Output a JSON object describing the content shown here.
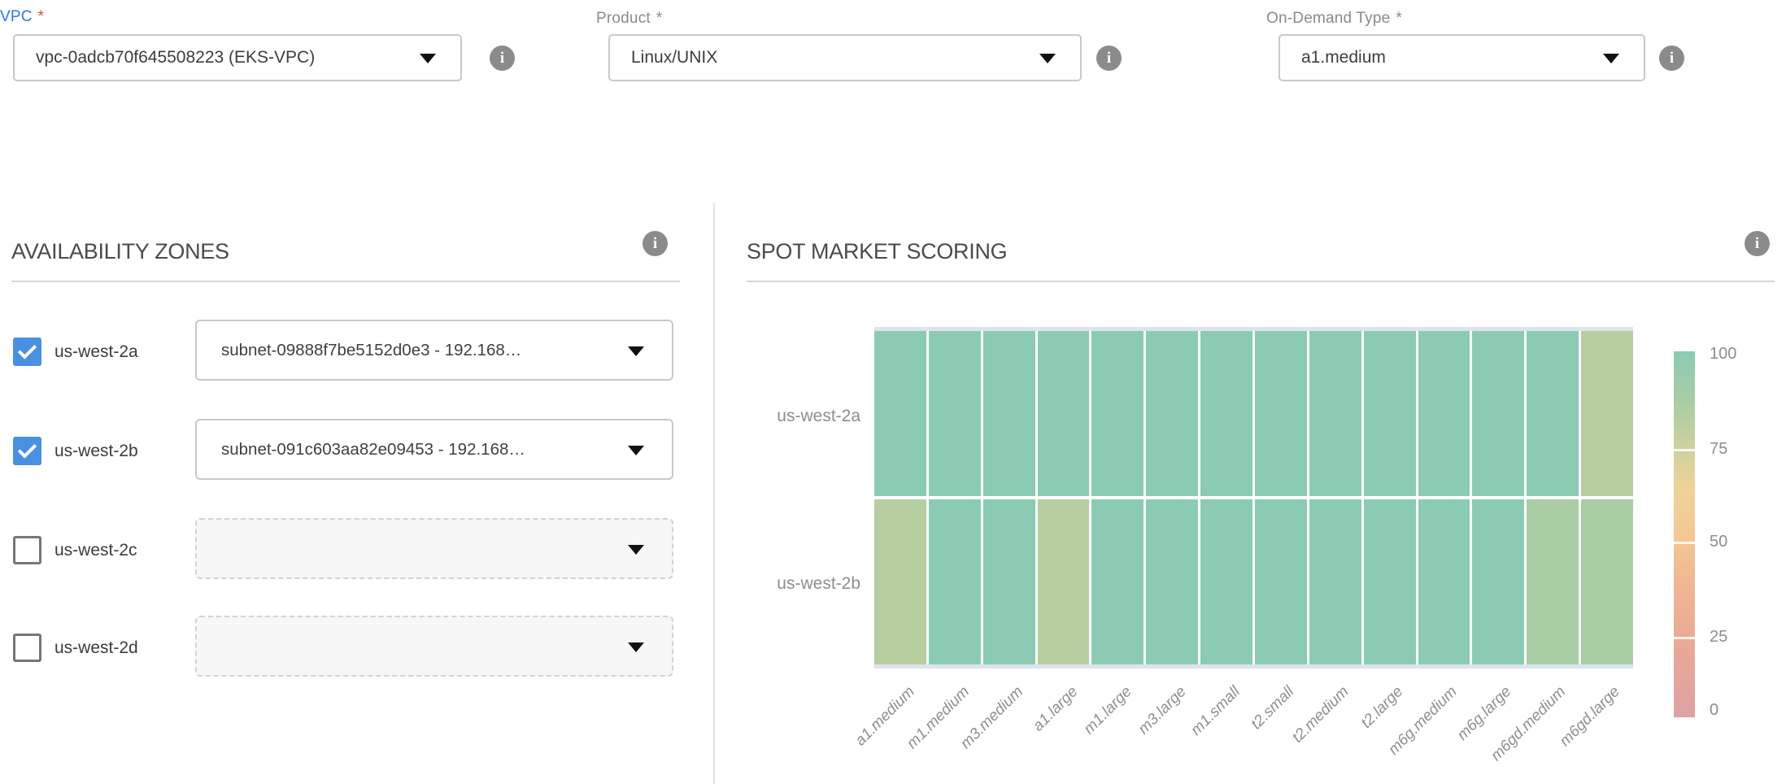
{
  "form": {
    "vpc": {
      "label": "VPC",
      "required_mark": "*",
      "value": "vpc-0adcb70f645508223 (EKS-VPC)"
    },
    "product": {
      "label": "Product",
      "required_mark": "*",
      "value": "Linux/UNIX"
    },
    "on_demand_type": {
      "label": "On-Demand Type",
      "required_mark": "*",
      "value": "a1.medium"
    }
  },
  "availability_zones": {
    "title": "AVAILABILITY ZONES",
    "zones": [
      {
        "label": "us-west-2a",
        "checked": true,
        "subnet": "subnet-09888f7be5152d0e3 - 192.168…"
      },
      {
        "label": "us-west-2b",
        "checked": true,
        "subnet": "subnet-091c603aa82e09453 - 192.168…"
      },
      {
        "label": "us-west-2c",
        "checked": false,
        "subnet": ""
      },
      {
        "label": "us-west-2d",
        "checked": false,
        "subnet": ""
      }
    ]
  },
  "spot_market_scoring": {
    "title": "SPOT MARKET SCORING"
  },
  "chart_data": {
    "type": "heatmap",
    "title": "SPOT MARKET SCORING",
    "x_categories": [
      "a1.medium",
      "m1.medium",
      "m3.medium",
      "a1.large",
      "m1.large",
      "m3.large",
      "m1.small",
      "t2.small",
      "t2.medium",
      "t2.large",
      "m6g.medium",
      "m6g.large",
      "m6gd.medium",
      "m6gd.large"
    ],
    "y_categories": [
      "us-west-2a",
      "us-west-2b"
    ],
    "series": [
      {
        "name": "us-west-2a",
        "values": [
          95,
          95,
          95,
          95,
          95,
          95,
          95,
          95,
          95,
          95,
          95,
          95,
          95,
          80
        ],
        "colors": [
          "#8BCBB3",
          "#8BCBB3",
          "#8BCBB3",
          "#8BCBB3",
          "#8BCBB3",
          "#8BCBB3",
          "#8BCBB3",
          "#8BCBB3",
          "#8BCBB3",
          "#8BCBB3",
          "#8BCBB3",
          "#8BCBB3",
          "#8BCBB3",
          "#B7CEA0"
        ]
      },
      {
        "name": "us-west-2b",
        "values": [
          80,
          95,
          95,
          80,
          95,
          95,
          95,
          95,
          95,
          95,
          95,
          95,
          85,
          85
        ],
        "colors": [
          "#B7CEA0",
          "#8BCBB3",
          "#8BCBB3",
          "#B7CEA0",
          "#8BCBB3",
          "#8BCBB3",
          "#8BCBB3",
          "#8BCBB3",
          "#8BCBB3",
          "#8BCBB3",
          "#8BCBB3",
          "#8BCBB3",
          "#A9CDA4",
          "#A9CDA4"
        ]
      }
    ],
    "value_range": [
      0,
      100
    ],
    "grid": false,
    "legend_position": "right",
    "colorbar": {
      "ticks": [
        "100",
        "75",
        "50",
        "25",
        "0"
      ],
      "gradient": [
        "#8BCBB3",
        "#A6CCA6",
        "#C9D19F",
        "#EFD29A",
        "#F4C893",
        "#F1B892",
        "#ECAC94",
        "#E5A69C",
        "#DDA1A4"
      ]
    }
  },
  "colors": {
    "accent_blue": "#2a79e8",
    "required_red": "#df4a32",
    "checkbox_blue": "#4a90e2",
    "cell_high": "#8BCBB3",
    "cell_mid": "#A9CDA4",
    "cell_low": "#B7CEA0"
  }
}
